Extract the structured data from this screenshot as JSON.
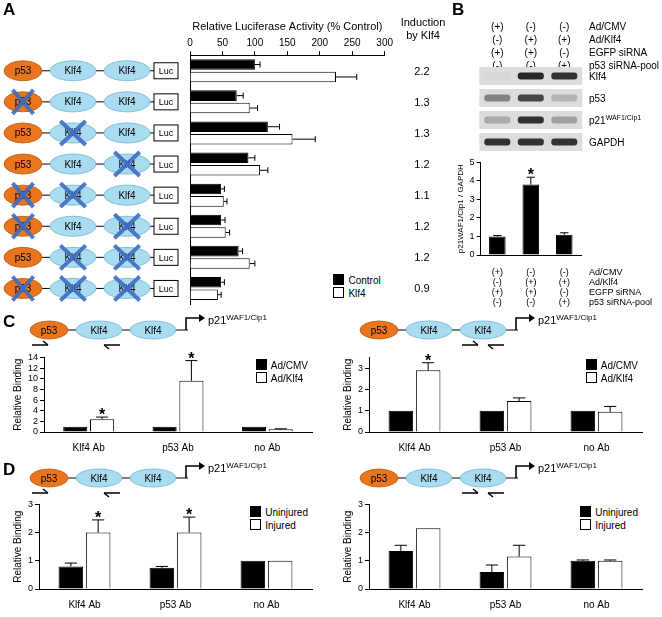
{
  "chart_data": [
    {
      "panel": "A",
      "type": "bar",
      "orientation": "horizontal",
      "x_label": "Relative Luciferase Activity (% Control)",
      "categories": [
        null,
        null,
        null,
        null,
        null,
        null,
        null,
        null
      ],
      "series": [
        {
          "name": "Control",
          "color": "#000000",
          "values": [
            100,
            72,
            120,
            90,
            48,
            48,
            75,
            48
          ],
          "errors": [
            8,
            10,
            18,
            10,
            5,
            6,
            6,
            5
          ]
        },
        {
          "name": "Klf4",
          "color": "#ffffff",
          "values": [
            225,
            92,
            158,
            108,
            52,
            55,
            92,
            43
          ],
          "errors": [
            32,
            12,
            35,
            12,
            5,
            6,
            8,
            5
          ]
        }
      ],
      "xlim": [
        0,
        300
      ],
      "xticks": [
        0,
        50,
        100,
        150,
        200,
        250,
        300
      ],
      "grid": false,
      "legend": "bottom right",
      "tick_labels": "x",
      "constructs": {
        "elements": [
          "p53",
          "Klf4",
          "Klf4"
        ],
        "reporter": "Luc",
        "mutated": [
          [
            false,
            false,
            false
          ],
          [
            true,
            false,
            false
          ],
          [
            false,
            true,
            false
          ],
          [
            false,
            false,
            true
          ],
          [
            true,
            true,
            false
          ],
          [
            true,
            false,
            true
          ],
          [
            false,
            true,
            true
          ],
          [
            true,
            true,
            true
          ]
        ]
      },
      "induction_title": "Induction by Klf4",
      "induction": [
        2.2,
        1.3,
        1.3,
        1.2,
        1.1,
        1.2,
        1.2,
        0.9
      ]
    },
    {
      "panel": "B",
      "type": "bar",
      "y_label": "p21WAF1/Cip1 / GAPDH",
      "categories": [
        null,
        null,
        null
      ],
      "values": [
        1,
        3.8,
        1.1
      ],
      "errors": [
        0.05,
        0.4,
        0.1
      ],
      "color": "#000000",
      "ylim": [
        0,
        5
      ],
      "yticks": [
        0,
        1,
        2,
        3,
        4,
        5
      ],
      "grid": false,
      "annotations": [
        {
          "index": 1,
          "text": "*"
        }
      ],
      "treatments": [
        {
          "label": "Ad/CMV",
          "signs": [
            "(+)",
            "(-)",
            "(-)"
          ]
        },
        {
          "label": "Ad/Klf4",
          "signs": [
            "(-)",
            "(+)",
            "(+)"
          ]
        },
        {
          "label": "EGFP siRNA",
          "signs": [
            "(+)",
            "(+)",
            "(-)"
          ]
        },
        {
          "label": "p53 siRNA-pool",
          "signs": [
            "(-)",
            "(-)",
            "(+)"
          ]
        }
      ],
      "blot": [
        {
          "protein": "Klf4",
          "band_intensity": [
            0.03,
            0.9,
            0.85
          ]
        },
        {
          "protein": "p53",
          "band_intensity": [
            0.45,
            0.75,
            0.2
          ]
        },
        {
          "protein": "p21",
          "sup": "WAF1/Cip1",
          "band_intensity": [
            0.25,
            0.85,
            0.3
          ]
        },
        {
          "protein": "GAPDH",
          "band_intensity": [
            0.85,
            0.85,
            0.85
          ]
        }
      ]
    },
    {
      "panel": "C",
      "type": "bar",
      "y_label": "Relative Binding",
      "categories": [
        "Klf4 Ab",
        "p53 Ab",
        "no Ab"
      ],
      "series": [
        {
          "name": "Ad/CMV",
          "color": "#000000",
          "values": [
            1,
            1,
            1
          ],
          "errors": [
            null,
            null,
            null
          ]
        },
        {
          "name": "Ad/Klf4",
          "color": "#ffffff",
          "values": [
            2.4,
            9.6,
            0.5
          ],
          "errors": [
            0.4,
            3.8,
            0.1
          ]
        }
      ],
      "ylim": [
        0,
        14
      ],
      "yticks": [
        0,
        2,
        4,
        6,
        8,
        10,
        12,
        14
      ],
      "grid": false,
      "legend": "top right",
      "annotations": [
        {
          "category": "Klf4 Ab",
          "series": "Ad/Klf4",
          "text": "*"
        },
        {
          "category": "p53 Ab",
          "series": "Ad/Klf4",
          "text": "*"
        }
      ],
      "diagram": {
        "elements": [
          "p53",
          "Klf4",
          "Klf4"
        ],
        "gene": "p21",
        "gene_sup": "WAF1/Cip1",
        "primer_elements": [
          0,
          1
        ]
      }
    },
    {
      "panel": "C",
      "type": "bar",
      "y_label": "Relative Binding",
      "categories": [
        "Klf4 Ab",
        "p53 Ab",
        "no Ab"
      ],
      "series": [
        {
          "name": "Ad/CMV",
          "color": "#000000",
          "values": [
            1,
            1,
            1
          ],
          "errors": [
            null,
            null,
            null
          ]
        },
        {
          "name": "Ad/Klf4",
          "color": "#ffffff",
          "values": [
            2.9,
            1.45,
            0.95
          ],
          "errors": [
            0.35,
            0.15,
            0.25
          ]
        }
      ],
      "ylim": [
        0,
        3.5
      ],
      "yticks": [
        0,
        1,
        2,
        3
      ],
      "grid": false,
      "legend": "top right",
      "annotations": [
        {
          "category": "Klf4 Ab",
          "series": "Ad/Klf4",
          "text": "*"
        }
      ],
      "diagram": {
        "elements": [
          "p53",
          "Klf4",
          "Klf4"
        ],
        "gene": "p21",
        "gene_sup": "WAF1/Cip1",
        "primer_elements": [
          2
        ]
      }
    },
    {
      "panel": "D",
      "type": "bar",
      "y_label": "Relative Binding",
      "categories": [
        "Klf4 Ab",
        "p53 Ab",
        "no Ab"
      ],
      "series": [
        {
          "name": "Uninjured",
          "color": "#000000",
          "values": [
            0.8,
            0.75,
            1
          ],
          "errors": [
            0.12,
            0.05,
            null
          ]
        },
        {
          "name": "Injured",
          "color": "#ffffff",
          "values": [
            2.0,
            2.0,
            1
          ],
          "errors": [
            0.45,
            0.55,
            null
          ]
        }
      ],
      "ylim": [
        0,
        3
      ],
      "yticks": [
        0,
        1,
        2,
        3
      ],
      "grid": false,
      "legend": "top right",
      "annotations": [
        {
          "category": "Klf4 Ab",
          "series": "Injured",
          "text": "*"
        },
        {
          "category": "p53 Ab",
          "series": "Injured",
          "text": "*"
        }
      ],
      "diagram": {
        "elements": [
          "p53",
          "Klf4",
          "Klf4"
        ],
        "gene": "p21",
        "gene_sup": "WAF1/Cip1",
        "primer_elements": [
          0,
          1
        ]
      }
    },
    {
      "panel": "D",
      "type": "bar",
      "y_label": "Relative Binding",
      "categories": [
        "Klf4 Ab",
        "p53 Ab",
        "no Ab"
      ],
      "series": [
        {
          "name": "Uninjured",
          "color": "#000000",
          "values": [
            1.35,
            0.6,
            1
          ],
          "errors": [
            0.2,
            0.25,
            0.03
          ]
        },
        {
          "name": "Injured",
          "color": "#ffffff",
          "values": [
            2.15,
            1.15,
            1
          ],
          "errors": [
            null,
            0.4,
            0.03
          ]
        }
      ],
      "ylim": [
        0,
        3
      ],
      "yticks": [
        0,
        1,
        2,
        3
      ],
      "grid": false,
      "legend": "top right",
      "diagram": {
        "elements": [
          "p53",
          "Klf4",
          "Klf4"
        ],
        "gene": "p21",
        "gene_sup": "WAF1/Cip1",
        "primer_elements": [
          2
        ]
      }
    }
  ]
}
